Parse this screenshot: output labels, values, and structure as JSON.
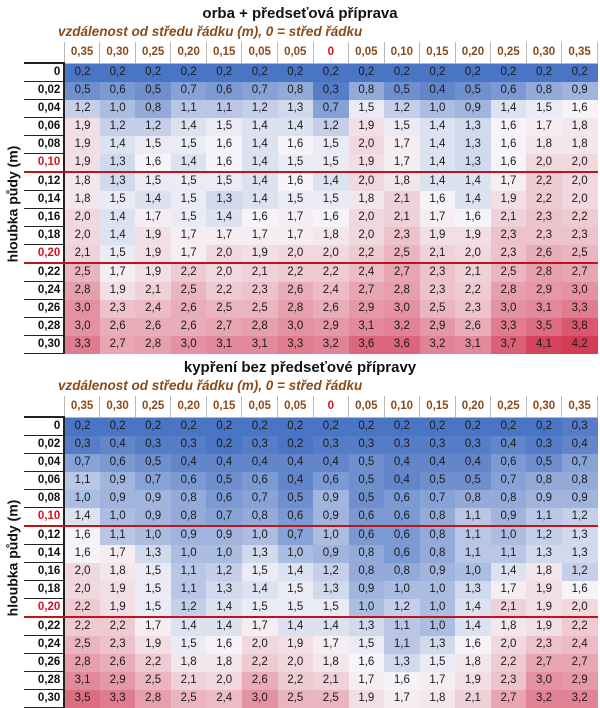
{
  "chart_data": [
    {
      "type": "heatmap",
      "title": "orba + předseťová příprava",
      "xlabel": "vzdálenost od středu řádku (m), 0 = střed řádku",
      "ylabel": "hloubka půdy (m)",
      "columns": [
        "0,35",
        "0,30",
        "0,25",
        "0,20",
        "0,15",
        "0,05",
        "0,05",
        "0",
        "0,05",
        "0,10",
        "0,15",
        "0,20",
        "0,25",
        "0,30",
        "0,35"
      ],
      "rows": [
        "0",
        "0,02",
        "0,04",
        "0,06",
        "0,08",
        "0,10",
        "0,12",
        "0,14",
        "0,16",
        "0,18",
        "0,20",
        "0,22",
        "0,24",
        "0,26",
        "0,28",
        "0,30"
      ],
      "values": [
        [
          0.2,
          0.2,
          0.2,
          0.2,
          0.2,
          0.2,
          0.2,
          0.2,
          0.2,
          0.2,
          0.2,
          0.2,
          0.2,
          0.2,
          0.2
        ],
        [
          0.5,
          0.6,
          0.5,
          0.7,
          0.6,
          0.7,
          0.8,
          0.3,
          0.8,
          0.5,
          0.4,
          0.5,
          0.6,
          0.8,
          0.9
        ],
        [
          1.2,
          1.0,
          0.8,
          1.1,
          1.1,
          1.2,
          1.3,
          0.7,
          1.5,
          1.2,
          1.0,
          0.9,
          1.4,
          1.5,
          1.6
        ],
        [
          1.9,
          1.2,
          1.2,
          1.4,
          1.5,
          1.4,
          1.4,
          1.2,
          1.9,
          1.5,
          1.4,
          1.3,
          1.6,
          1.7,
          1.8
        ],
        [
          1.9,
          1.4,
          1.5,
          1.5,
          1.6,
          1.4,
          1.6,
          1.5,
          2.0,
          1.7,
          1.4,
          1.3,
          1.6,
          1.8,
          1.8
        ],
        [
          1.9,
          1.3,
          1.6,
          1.4,
          1.6,
          1.4,
          1.5,
          1.5,
          1.9,
          1.7,
          1.4,
          1.3,
          1.6,
          2.0,
          2.0
        ],
        [
          1.8,
          1.3,
          1.5,
          1.5,
          1.5,
          1.4,
          1.6,
          1.4,
          2.0,
          1.8,
          1.4,
          1.4,
          1.7,
          2.2,
          2.0
        ],
        [
          1.8,
          1.5,
          1.4,
          1.5,
          1.3,
          1.4,
          1.5,
          1.5,
          1.8,
          2.1,
          1.6,
          1.4,
          1.9,
          2.2,
          2.0
        ],
        [
          2.0,
          1.4,
          1.7,
          1.5,
          1.4,
          1.6,
          1.7,
          1.6,
          2.0,
          2.1,
          1.7,
          1.6,
          2.1,
          2.3,
          2.2
        ],
        [
          2.0,
          1.4,
          1.9,
          1.7,
          1.7,
          1.7,
          1.7,
          1.8,
          2.0,
          2.3,
          1.9,
          1.9,
          2.3,
          2.3,
          2.3
        ],
        [
          2.1,
          1.5,
          1.9,
          1.7,
          2.0,
          1.9,
          2.0,
          2.0,
          2.2,
          2.5,
          2.1,
          2.0,
          2.3,
          2.6,
          2.5
        ],
        [
          2.5,
          1.7,
          1.9,
          2.2,
          2.0,
          2.1,
          2.2,
          2.2,
          2.4,
          2.7,
          2.3,
          2.1,
          2.5,
          2.8,
          2.7
        ],
        [
          2.8,
          1.9,
          2.1,
          2.5,
          2.2,
          2.3,
          2.6,
          2.4,
          2.7,
          2.8,
          2.3,
          2.2,
          2.8,
          2.9,
          3.0
        ],
        [
          3.0,
          2.3,
          2.4,
          2.6,
          2.5,
          2.5,
          2.8,
          2.6,
          2.9,
          3.0,
          2.5,
          2.3,
          3.0,
          3.1,
          3.3
        ],
        [
          3.0,
          2.6,
          2.6,
          2.6,
          2.7,
          2.8,
          3.0,
          2.9,
          3.1,
          3.2,
          2.9,
          2.6,
          3.3,
          3.5,
          3.8
        ],
        [
          3.3,
          2.7,
          2.8,
          3.0,
          3.1,
          3.1,
          3.3,
          3.2,
          3.6,
          3.6,
          3.2,
          3.1,
          3.7,
          4.1,
          4.2
        ]
      ]
    },
    {
      "type": "heatmap",
      "title": "kypření bez předseťové přípravy",
      "xlabel": "vzdálenost od středu řádku (m), 0 = střed řádku",
      "ylabel": "hloubka půdy (m)",
      "columns": [
        "0,35",
        "0,30",
        "0,25",
        "0,20",
        "0,15",
        "0,05",
        "0,05",
        "0",
        "0,05",
        "0,10",
        "0,15",
        "0,20",
        "0,25",
        "0,30",
        "0,35"
      ],
      "rows": [
        "0",
        "0,02",
        "0,04",
        "0,06",
        "0,08",
        "0,10",
        "0,12",
        "0,14",
        "0,16",
        "0,18",
        "0,20",
        "0,22",
        "0,24",
        "0,26",
        "0,28",
        "0,30"
      ],
      "values": [
        [
          0.2,
          0.2,
          0.2,
          0.2,
          0.2,
          0.2,
          0.2,
          0.2,
          0.2,
          0.2,
          0.2,
          0.2,
          0.2,
          0.2,
          0.3
        ],
        [
          0.3,
          0.4,
          0.3,
          0.3,
          0.2,
          0.3,
          0.2,
          0.3,
          0.3,
          0.3,
          0.3,
          0.3,
          0.4,
          0.3,
          0.4
        ],
        [
          0.7,
          0.6,
          0.5,
          0.4,
          0.4,
          0.4,
          0.4,
          0.4,
          0.5,
          0.4,
          0.4,
          0.4,
          0.6,
          0.5,
          0.7
        ],
        [
          1.1,
          0.9,
          0.7,
          0.6,
          0.5,
          0.6,
          0.4,
          0.6,
          0.5,
          0.4,
          0.5,
          0.5,
          0.7,
          0.8,
          0.8
        ],
        [
          1.0,
          0.9,
          0.9,
          0.8,
          0.6,
          0.7,
          0.5,
          0.9,
          0.5,
          0.6,
          0.7,
          0.8,
          0.8,
          0.9,
          0.9
        ],
        [
          1.4,
          1.0,
          0.9,
          0.8,
          0.7,
          0.8,
          0.6,
          0.9,
          0.6,
          0.6,
          0.8,
          1.1,
          0.9,
          1.1,
          1.2
        ],
        [
          1.6,
          1.1,
          1.0,
          0.9,
          0.9,
          1.0,
          0.7,
          1.0,
          0.6,
          0.6,
          0.8,
          1.1,
          1.0,
          1.2,
          1.3
        ],
        [
          1.6,
          1.7,
          1.3,
          1.0,
          1.0,
          1.3,
          1.0,
          0.9,
          0.8,
          0.6,
          0.8,
          1.1,
          1.1,
          1.3,
          1.3
        ],
        [
          2.0,
          1.8,
          1.5,
          1.1,
          1.2,
          1.5,
          1.4,
          1.2,
          0.8,
          0.8,
          0.9,
          1.0,
          1.4,
          1.8,
          1.2
        ],
        [
          2.0,
          1.9,
          1.5,
          1.1,
          1.3,
          1.4,
          1.5,
          1.3,
          0.9,
          1.0,
          1.0,
          1.3,
          1.7,
          1.9,
          1.6
        ],
        [
          2.2,
          1.9,
          1.5,
          1.2,
          1.4,
          1.5,
          1.5,
          1.5,
          1.0,
          1.2,
          1.0,
          1.4,
          2.1,
          1.9,
          2.0
        ],
        [
          2.2,
          2.2,
          1.7,
          1.4,
          1.4,
          1.7,
          1.4,
          1.4,
          1.3,
          1.1,
          1.0,
          1.4,
          1.8,
          1.9,
          2.2
        ],
        [
          2.5,
          2.3,
          1.9,
          1.5,
          1.6,
          2.0,
          1.9,
          1.7,
          1.5,
          1.1,
          1.3,
          1.6,
          2.0,
          2.3,
          2.4
        ],
        [
          2.8,
          2.6,
          2.2,
          1.8,
          1.8,
          2.2,
          2.0,
          1.8,
          1.6,
          1.3,
          1.5,
          1.8,
          2.2,
          2.7,
          2.7
        ],
        [
          3.1,
          2.9,
          2.5,
          2.1,
          2.0,
          2.6,
          2.2,
          2.1,
          1.7,
          1.6,
          1.7,
          1.9,
          2.3,
          3.0,
          2.9
        ],
        [
          3.5,
          3.3,
          2.8,
          2.5,
          2.4,
          3.0,
          2.5,
          2.5,
          1.9,
          1.7,
          1.8,
          2.1,
          2.7,
          3.2,
          3.2
        ]
      ]
    }
  ],
  "colors": {
    "low": "#4a74c4",
    "mid": "#f6f4f8",
    "high": "#d43c56",
    "header_text": "#8a4b1c",
    "highlight": "#d2141e"
  },
  "color_scale": {
    "min": 0.2,
    "mid": 1.6,
    "max": 4.2
  },
  "highlight_rows": [
    "0,10",
    "0,20"
  ],
  "highlight_column": "0"
}
